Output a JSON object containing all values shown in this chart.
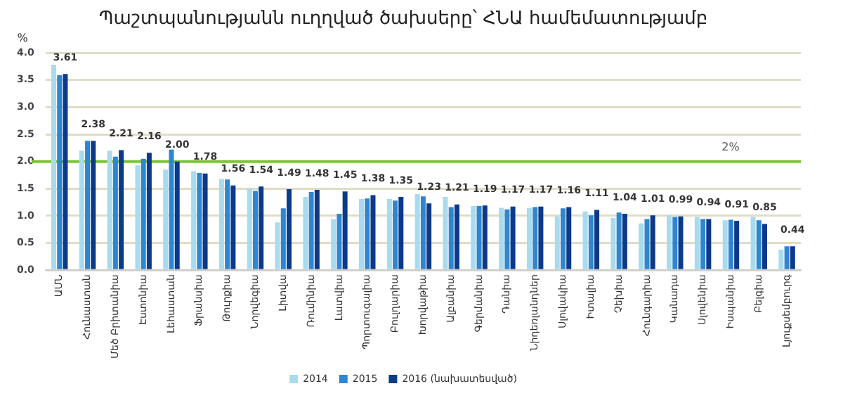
{
  "chart_data": {
    "type": "bar",
    "title": "Պաշտպանությանն ուղղված ծախսերը՝ ՀՆԱ համեմատությամբ",
    "ylabel": "%",
    "categories": [
      "ԱՄՆ",
      "Հունաստան",
      "Մեծ Բրիտանիա",
      "Էստոնիա",
      "Լեհաստան",
      "Ֆրանսիա",
      "Թուրքիա",
      "Նորվեգիա",
      "Լիտվա",
      "Ռումինիա",
      "Լատվիա",
      "Պորտուգալիա",
      "Բուլղարիա",
      "Խորվաթիա",
      "Ալբանիա",
      "Գերմանիա",
      "Դանիա",
      "Նիդեռլանդներ",
      "Սլովակիա",
      "Իտալիա",
      "Չեխիա",
      "Հունգարիա",
      "Կանադա",
      "Սլովենիա",
      "Իսպանիա",
      "Բելգիա",
      "Լյուքսեմբուրգ"
    ],
    "series": [
      {
        "name": "2014",
        "color": "#a8dbee",
        "values": [
          3.78,
          2.2,
          2.2,
          1.93,
          1.85,
          1.82,
          1.68,
          1.51,
          0.88,
          1.35,
          0.94,
          1.31,
          1.31,
          1.4,
          1.35,
          1.18,
          1.15,
          1.15,
          0.99,
          1.08,
          0.96,
          0.86,
          1.01,
          0.98,
          0.92,
          0.98,
          0.38
        ]
      },
      {
        "name": "2015",
        "color": "#2e86d1",
        "values": [
          3.59,
          2.38,
          2.09,
          2.05,
          2.22,
          1.79,
          1.67,
          1.46,
          1.14,
          1.44,
          1.04,
          1.32,
          1.28,
          1.36,
          1.16,
          1.18,
          1.12,
          1.16,
          1.14,
          1.01,
          1.06,
          0.94,
          0.98,
          0.94,
          0.93,
          0.92,
          0.44
        ]
      },
      {
        "name": "2016 (նախատեսված)",
        "color": "#0c3a8a",
        "values": [
          3.61,
          2.38,
          2.21,
          2.16,
          2.0,
          1.78,
          1.56,
          1.54,
          1.49,
          1.48,
          1.45,
          1.38,
          1.35,
          1.23,
          1.21,
          1.19,
          1.17,
          1.17,
          1.16,
          1.11,
          1.04,
          1.01,
          0.99,
          0.94,
          0.91,
          0.85,
          0.44
        ],
        "value_labels": [
          "3.61",
          "2.38",
          "2.21",
          "2.16",
          "2.00",
          "1.78",
          "1.56",
          "1.54",
          "1.49",
          "1.48",
          "1.45",
          "1.38",
          "1.35",
          "1.23",
          "1.21",
          "1.19",
          "1.17",
          "1.17",
          "1.16",
          "1.11",
          "1.04",
          "1.01",
          "0.99",
          "0.94",
          "0.91",
          "0.85",
          "0.44"
        ]
      }
    ],
    "ylim": [
      0,
      4
    ],
    "yticks": [
      {
        "value": 0,
        "label": "0.0"
      },
      {
        "value": 0.5,
        "label": "0.5"
      },
      {
        "value": 1,
        "label": "1.0"
      },
      {
        "value": 1.5,
        "label": "1.5"
      },
      {
        "value": 2,
        "label": "2.0"
      },
      {
        "value": 2.5,
        "label": "2.5"
      },
      {
        "value": 3,
        "label": "3.0"
      },
      {
        "value": 3.5,
        "label": "3.5"
      },
      {
        "value": 4,
        "label": "4.0"
      }
    ],
    "grid": "y",
    "legend": "bottom",
    "ref_lines": [
      {
        "axis": "y",
        "value": 2,
        "label": "2%",
        "color": "#7cc43a"
      }
    ]
  }
}
